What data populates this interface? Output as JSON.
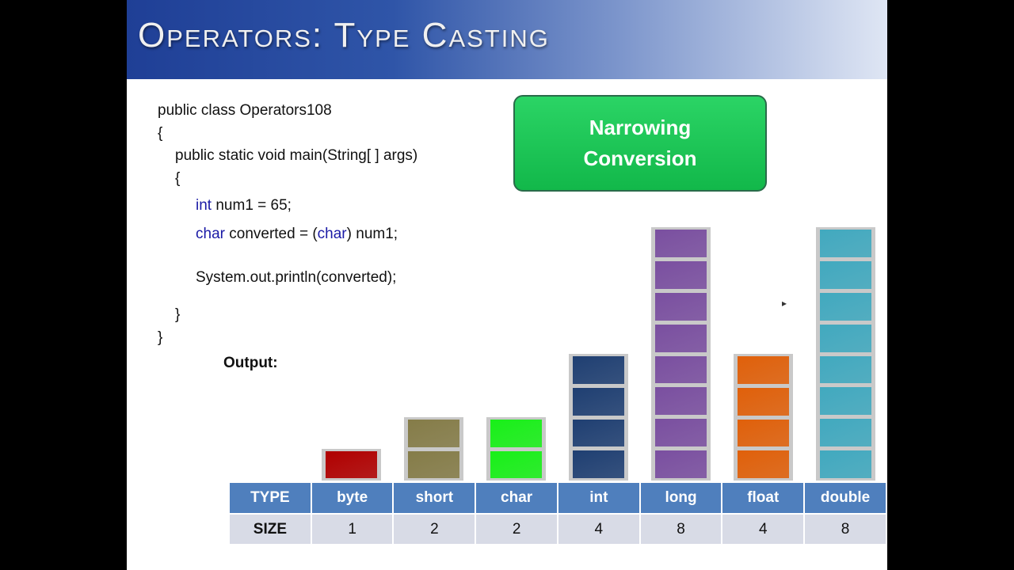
{
  "title": "Operators: Type Casting",
  "code": {
    "l1": "public class Operators108",
    "l2": "{",
    "l3": "public static void main(String[ ] args)",
    "l4": "{",
    "l5_kw": "int",
    "l5": " num1 = 65;",
    "l6_kw": "char",
    "l6a": " converted = (",
    "l6_kw2": "char",
    "l6b": ") num1;",
    "l7": "System.out.println(converted);",
    "l8": "}",
    "l9": "}"
  },
  "output_label": "Output:",
  "box": {
    "line1": "Narrowing",
    "line2": "Conversion"
  },
  "table": {
    "type_header": "TYPE",
    "size_header": "SIZE",
    "types": [
      {
        "name": "byte",
        "size": "1",
        "color": "#b00000"
      },
      {
        "name": "short",
        "size": "2",
        "color": "#857c48"
      },
      {
        "name": "char",
        "size": "2",
        "color": "#18f018"
      },
      {
        "name": "int",
        "size": "4",
        "color": "#1f3f72"
      },
      {
        "name": "long",
        "size": "8",
        "color": "#7a4fa0"
      },
      {
        "name": "float",
        "size": "4",
        "color": "#e0600a"
      },
      {
        "name": "double",
        "size": "8",
        "color": "#41a9bf"
      }
    ]
  }
}
